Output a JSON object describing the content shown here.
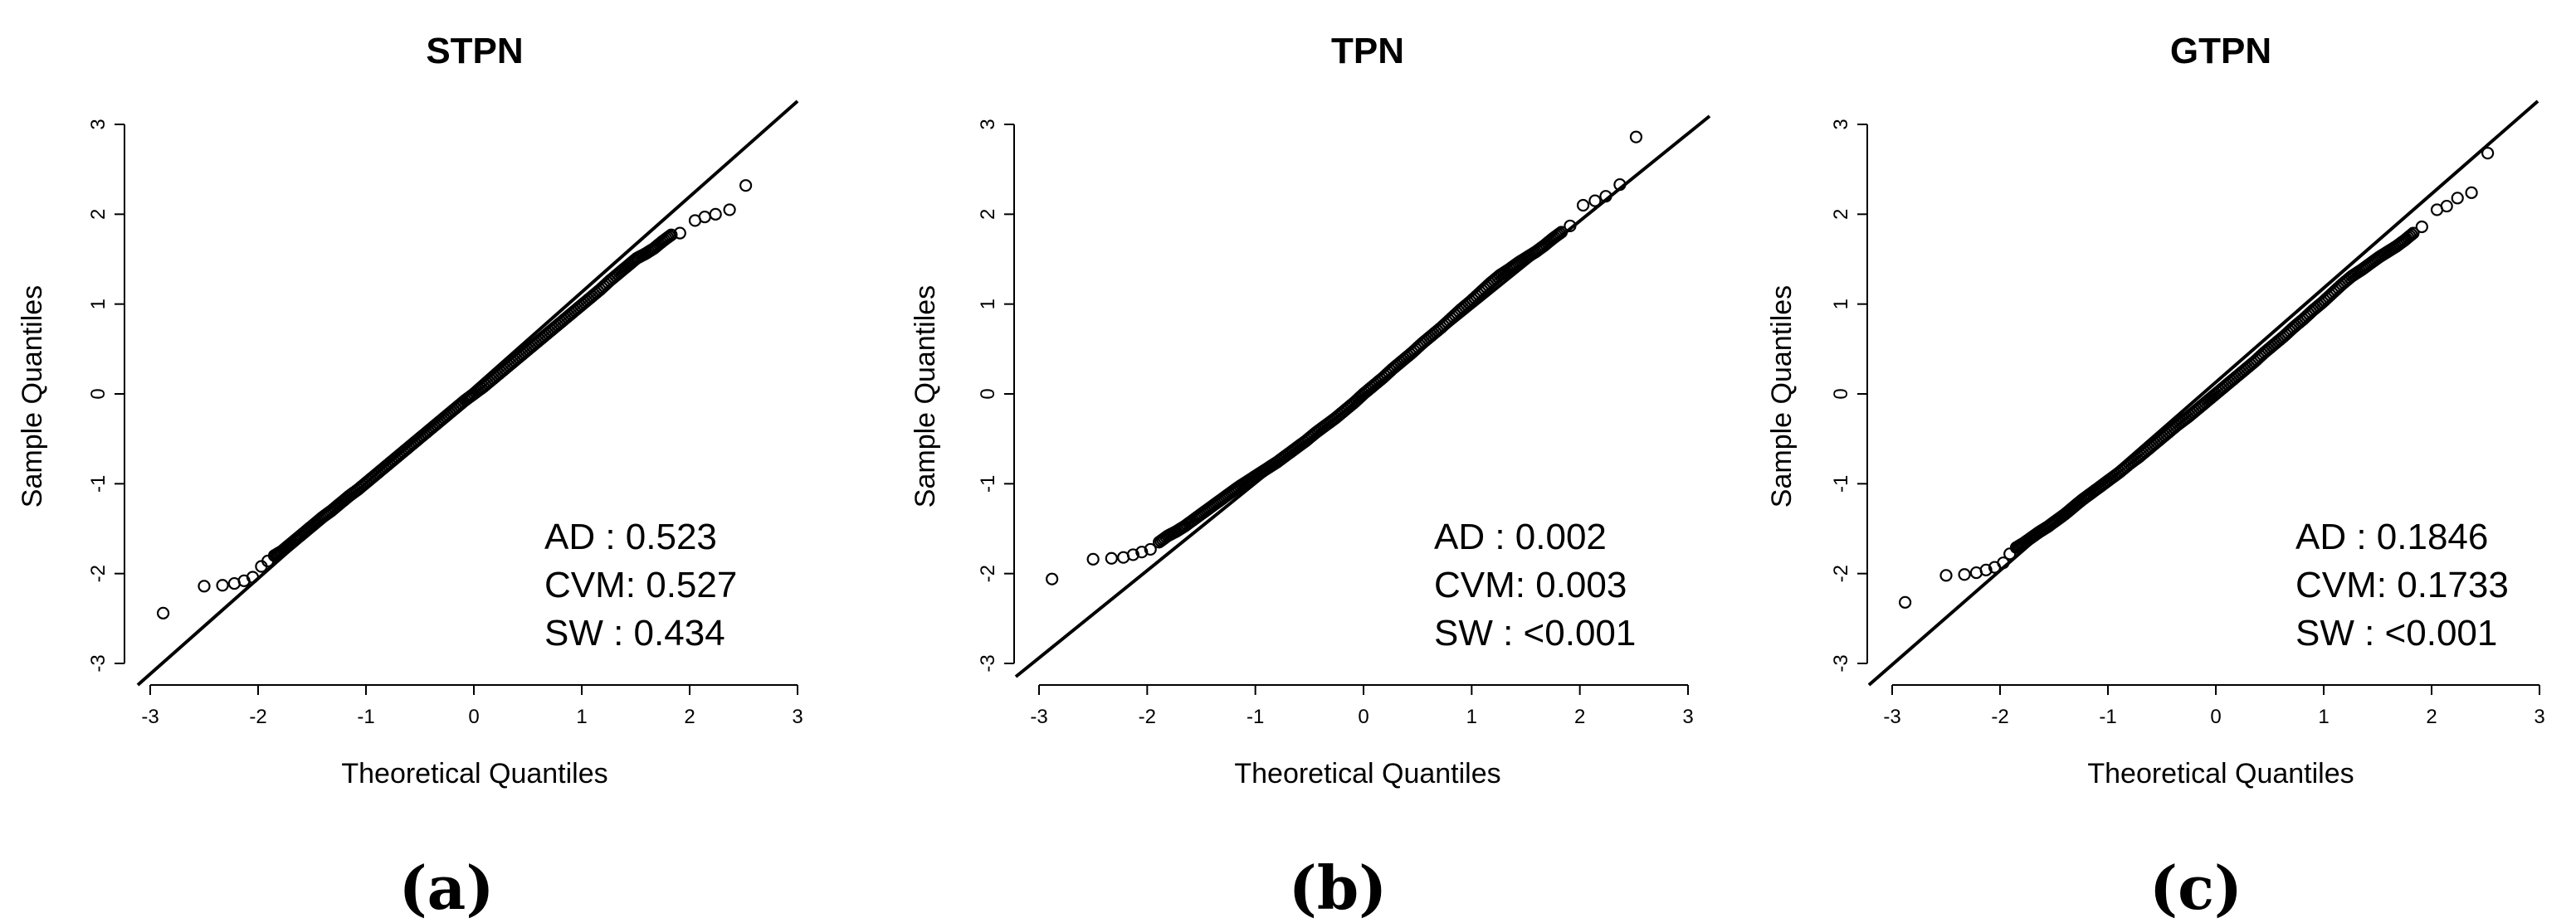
{
  "chart_data": [
    {
      "type": "scatter",
      "title": "STPN",
      "xlabel": "Theoretical Quantiles",
      "ylabel": "Sample Quantiles",
      "xlim": [
        -3,
        3
      ],
      "ylim": [
        -3,
        3
      ],
      "xticks": [
        "-3",
        "-2",
        "-1",
        "0",
        "1",
        "2",
        "3"
      ],
      "yticks": [
        "-3",
        "-2",
        "-1",
        "0",
        "1",
        "2",
        "3"
      ],
      "reference_line": {
        "slope": 1.0,
        "intercept": 0.0
      },
      "stats": [
        {
          "label": "AD   : 0.523"
        },
        {
          "label": "CVM: 0.527"
        },
        {
          "label": "SW   : 0.434"
        }
      ],
      "panel_label": "(a)",
      "points": [
        [
          -2.88,
          -2.44
        ],
        [
          -2.5,
          -2.14
        ],
        [
          -2.33,
          -2.13
        ],
        [
          -2.22,
          -2.11
        ],
        [
          -2.13,
          -2.08
        ],
        [
          -2.05,
          -2.04
        ],
        [
          -1.97,
          -1.92
        ],
        [
          -1.91,
          -1.86
        ],
        [
          -1.85,
          -1.8
        ],
        [
          -1.78,
          -1.75
        ],
        [
          -1.71,
          -1.68
        ],
        [
          -1.64,
          -1.61
        ],
        [
          -1.56,
          -1.53
        ],
        [
          -1.48,
          -1.45
        ],
        [
          -1.4,
          -1.37
        ],
        [
          -1.32,
          -1.3
        ],
        [
          -1.24,
          -1.22
        ],
        [
          -1.16,
          -1.14
        ],
        [
          -1.07,
          -1.06
        ],
        [
          -0.98,
          -0.97
        ],
        [
          -0.89,
          -0.88
        ],
        [
          -0.8,
          -0.79
        ],
        [
          -0.71,
          -0.7
        ],
        [
          -0.62,
          -0.61
        ],
        [
          -0.53,
          -0.52
        ],
        [
          -0.44,
          -0.43
        ],
        [
          -0.35,
          -0.34
        ],
        [
          -0.26,
          -0.25
        ],
        [
          -0.17,
          -0.16
        ],
        [
          -0.08,
          -0.07
        ],
        [
          0.0,
          0.0
        ],
        [
          0.09,
          0.08
        ],
        [
          0.18,
          0.17
        ],
        [
          0.27,
          0.26
        ],
        [
          0.36,
          0.35
        ],
        [
          0.45,
          0.44
        ],
        [
          0.54,
          0.53
        ],
        [
          0.63,
          0.62
        ],
        [
          0.72,
          0.71
        ],
        [
          0.81,
          0.8
        ],
        [
          0.9,
          0.89
        ],
        [
          0.99,
          0.98
        ],
        [
          1.08,
          1.07
        ],
        [
          1.17,
          1.16
        ],
        [
          1.26,
          1.26
        ],
        [
          1.35,
          1.35
        ],
        [
          1.43,
          1.43
        ],
        [
          1.51,
          1.51
        ],
        [
          1.59,
          1.56
        ],
        [
          1.67,
          1.62
        ],
        [
          1.75,
          1.7
        ],
        [
          1.83,
          1.77
        ],
        [
          1.91,
          1.79
        ],
        [
          2.05,
          1.93
        ],
        [
          2.14,
          1.97
        ],
        [
          2.24,
          2.0
        ],
        [
          2.37,
          2.05
        ],
        [
          2.52,
          2.32
        ]
      ]
    },
    {
      "type": "scatter",
      "title": "TPN",
      "xlabel": "Theoretical Quantiles",
      "ylabel": "Sample Quantiles",
      "xlim": [
        -3,
        3
      ],
      "ylim": [
        -3,
        3
      ],
      "xticks": [
        "-3",
        "-2",
        "-1",
        "0",
        "1",
        "2",
        "3"
      ],
      "yticks": [
        "-3",
        "-2",
        "-1",
        "0",
        "1",
        "2",
        "3"
      ],
      "reference_line": {
        "slope": 1.0,
        "intercept": 0.0
      },
      "stats": [
        {
          "label": "AD   : 0.002"
        },
        {
          "label": "CVM: 0.003"
        },
        {
          "label": "SW   : <0.001"
        }
      ],
      "panel_label": "(b)",
      "points": [
        [
          -2.88,
          -2.06
        ],
        [
          -2.5,
          -1.84
        ],
        [
          -2.33,
          -1.83
        ],
        [
          -2.22,
          -1.82
        ],
        [
          -2.13,
          -1.79
        ],
        [
          -2.05,
          -1.76
        ],
        [
          -1.97,
          -1.73
        ],
        [
          -1.89,
          -1.65
        ],
        [
          -1.81,
          -1.58
        ],
        [
          -1.73,
          -1.53
        ],
        [
          -1.65,
          -1.47
        ],
        [
          -1.56,
          -1.39
        ],
        [
          -1.48,
          -1.32
        ],
        [
          -1.4,
          -1.25
        ],
        [
          -1.32,
          -1.18
        ],
        [
          -1.24,
          -1.11
        ],
        [
          -1.16,
          -1.04
        ],
        [
          -1.07,
          -0.97
        ],
        [
          -0.98,
          -0.9
        ],
        [
          -0.89,
          -0.83
        ],
        [
          -0.8,
          -0.76
        ],
        [
          -0.71,
          -0.68
        ],
        [
          -0.62,
          -0.6
        ],
        [
          -0.53,
          -0.52
        ],
        [
          -0.44,
          -0.43
        ],
        [
          -0.35,
          -0.35
        ],
        [
          -0.26,
          -0.27
        ],
        [
          -0.17,
          -0.18
        ],
        [
          -0.08,
          -0.09
        ],
        [
          0.0,
          0.0
        ],
        [
          0.09,
          0.09
        ],
        [
          0.18,
          0.18
        ],
        [
          0.27,
          0.28
        ],
        [
          0.36,
          0.37
        ],
        [
          0.45,
          0.46
        ],
        [
          0.54,
          0.56
        ],
        [
          0.63,
          0.65
        ],
        [
          0.72,
          0.74
        ],
        [
          0.81,
          0.84
        ],
        [
          0.9,
          0.94
        ],
        [
          0.99,
          1.03
        ],
        [
          1.08,
          1.13
        ],
        [
          1.17,
          1.23
        ],
        [
          1.26,
          1.32
        ],
        [
          1.35,
          1.39
        ],
        [
          1.43,
          1.46
        ],
        [
          1.51,
          1.52
        ],
        [
          1.59,
          1.58
        ],
        [
          1.67,
          1.65
        ],
        [
          1.75,
          1.73
        ],
        [
          1.83,
          1.8
        ],
        [
          1.91,
          1.87
        ],
        [
          2.03,
          2.1
        ],
        [
          2.14,
          2.15
        ],
        [
          2.24,
          2.2
        ],
        [
          2.37,
          2.33
        ],
        [
          2.52,
          2.86
        ]
      ]
    },
    {
      "type": "scatter",
      "title": "GTPN",
      "xlabel": "Theoretical Quantiles",
      "ylabel": "Sample Quantiles",
      "xlim": [
        -3,
        3
      ],
      "ylim": [
        -3,
        3
      ],
      "xticks": [
        "-3",
        "-2",
        "-1",
        "0",
        "1",
        "2",
        "3"
      ],
      "yticks": [
        "-3",
        "-2",
        "-1",
        "0",
        "1",
        "2",
        "3"
      ],
      "reference_line": {
        "slope": 1.0,
        "intercept": 0.0
      },
      "stats": [
        {
          "label": "AD   : 0.1846"
        },
        {
          "label": "CVM: 0.1733"
        },
        {
          "label": "SW   : <0.001"
        }
      ],
      "panel_label": "(c)",
      "points": [
        [
          -2.88,
          -2.32
        ],
        [
          -2.5,
          -2.02
        ],
        [
          -2.33,
          -2.01
        ],
        [
          -2.22,
          -1.99
        ],
        [
          -2.13,
          -1.96
        ],
        [
          -2.05,
          -1.93
        ],
        [
          -1.97,
          -1.88
        ],
        [
          -1.91,
          -1.78
        ],
        [
          -1.85,
          -1.71
        ],
        [
          -1.78,
          -1.66
        ],
        [
          -1.71,
          -1.6
        ],
        [
          -1.64,
          -1.54
        ],
        [
          -1.56,
          -1.48
        ],
        [
          -1.48,
          -1.41
        ],
        [
          -1.4,
          -1.34
        ],
        [
          -1.32,
          -1.26
        ],
        [
          -1.24,
          -1.18
        ],
        [
          -1.16,
          -1.11
        ],
        [
          -1.07,
          -1.03
        ],
        [
          -0.98,
          -0.95
        ],
        [
          -0.89,
          -0.87
        ],
        [
          -0.8,
          -0.78
        ],
        [
          -0.71,
          -0.7
        ],
        [
          -0.62,
          -0.61
        ],
        [
          -0.53,
          -0.52
        ],
        [
          -0.44,
          -0.43
        ],
        [
          -0.35,
          -0.34
        ],
        [
          -0.26,
          -0.26
        ],
        [
          -0.17,
          -0.17
        ],
        [
          -0.08,
          -0.08
        ],
        [
          0.0,
          0.0
        ],
        [
          0.09,
          0.09
        ],
        [
          0.18,
          0.18
        ],
        [
          0.27,
          0.27
        ],
        [
          0.36,
          0.36
        ],
        [
          0.45,
          0.46
        ],
        [
          0.54,
          0.55
        ],
        [
          0.63,
          0.64
        ],
        [
          0.72,
          0.74
        ],
        [
          0.81,
          0.83
        ],
        [
          0.9,
          0.93
        ],
        [
          0.99,
          1.02
        ],
        [
          1.08,
          1.12
        ],
        [
          1.17,
          1.22
        ],
        [
          1.26,
          1.31
        ],
        [
          1.35,
          1.38
        ],
        [
          1.43,
          1.45
        ],
        [
          1.51,
          1.52
        ],
        [
          1.59,
          1.58
        ],
        [
          1.67,
          1.64
        ],
        [
          1.75,
          1.71
        ],
        [
          1.83,
          1.79
        ],
        [
          1.91,
          1.86
        ],
        [
          2.05,
          2.05
        ],
        [
          2.14,
          2.09
        ],
        [
          2.24,
          2.18
        ],
        [
          2.37,
          2.24
        ],
        [
          2.52,
          2.68
        ]
      ]
    }
  ]
}
